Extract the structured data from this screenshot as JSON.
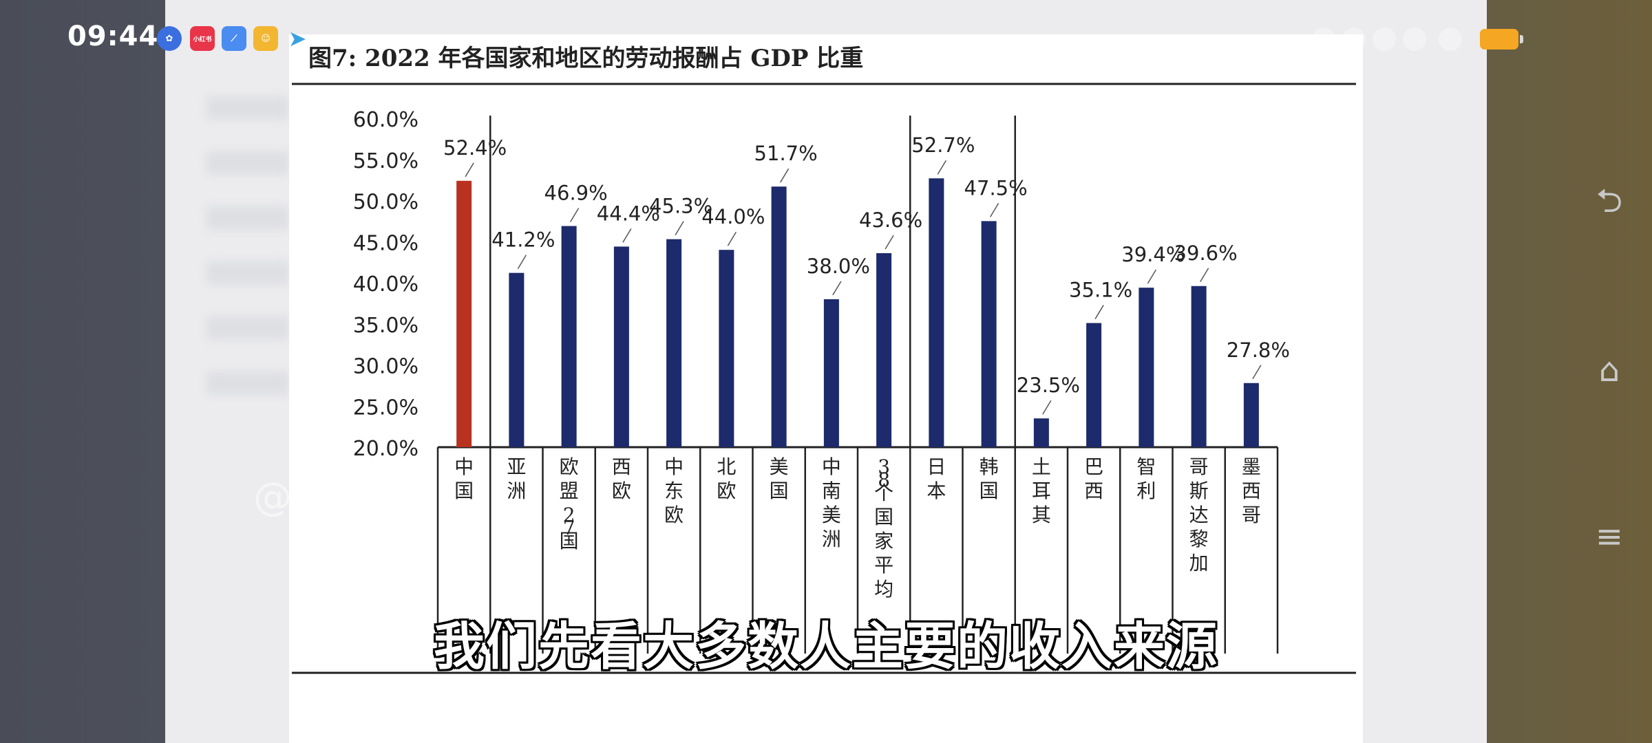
{
  "status_bar": {
    "time": "09:44",
    "apps": [
      "baidu-app-icon",
      "xiaohongshu-app-icon",
      "browser-app-icon",
      "game-app-icon",
      "telegram-app-icon"
    ],
    "app_icon_labels": [
      "",
      "小红书",
      "",
      "",
      ""
    ],
    "battery_color": "#f5a623"
  },
  "nav_buttons": [
    "back-icon",
    "home-icon",
    "menu-icon"
  ],
  "subtitle_caption": "我们先看大多数人主要的收入来源",
  "watermark": "@",
  "chart_data": {
    "type": "bar",
    "title": "图7:  2022 年各国家和地区的劳动报酬占 GDP 比重",
    "categories": [
      "中国",
      "亚洲",
      "欧盟27国",
      "西欧",
      "中东欧",
      "北欧",
      "美国",
      "中南美洲",
      "38个国家平均",
      "日本",
      "韩国",
      "土耳其",
      "巴西",
      "智利",
      "哥斯达黎加",
      "墨西哥"
    ],
    "values": [
      52.4,
      41.2,
      46.9,
      44.4,
      45.3,
      44.0,
      51.7,
      38.0,
      43.6,
      52.7,
      47.5,
      23.5,
      35.1,
      39.4,
      39.6,
      27.8
    ],
    "data_labels": [
      "52.4%",
      "41.2%",
      "46.9%",
      "44.4%",
      "45.3%",
      "44.0%",
      "51.7%",
      "38.0%",
      "43.6%",
      "52.7%",
      "47.5%",
      "23.5%",
      "35.1%",
      "39.4%",
      "39.6%",
      "27.8%"
    ],
    "ylim": [
      20,
      60
    ],
    "yticks": [
      20,
      25,
      30,
      35,
      40,
      45,
      50,
      55,
      60
    ],
    "ytick_labels": [
      "20.0%",
      "25.0%",
      "30.0%",
      "35.0%",
      "40.0%",
      "45.0%",
      "50.0%",
      "55.0%",
      "60.0%"
    ],
    "group_separators_after": [
      0,
      8,
      10
    ],
    "highlight_color": "#b8321f",
    "bar_color": "#1d2a6b",
    "xlabel": "",
    "ylabel": ""
  }
}
